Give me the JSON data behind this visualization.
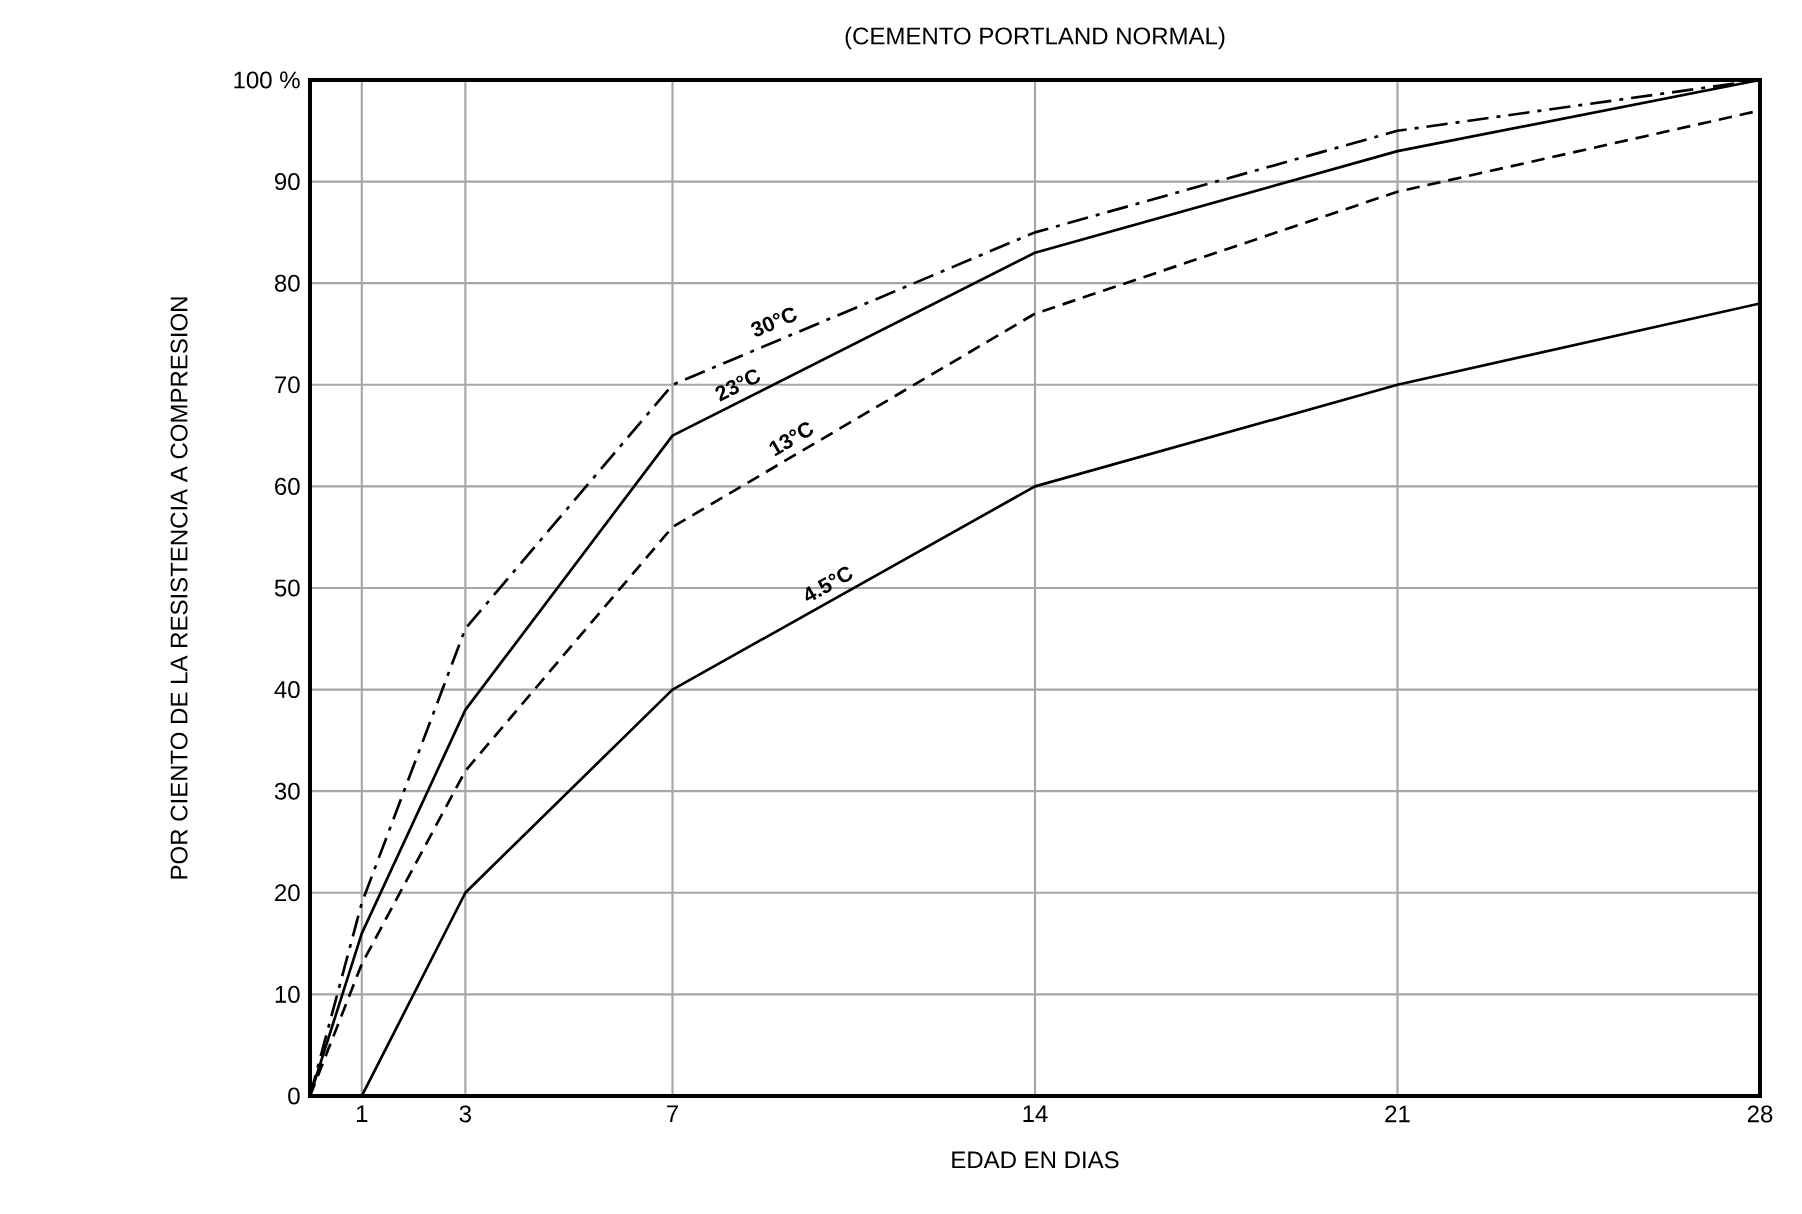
{
  "chart_data": {
    "type": "line",
    "title": "(CEMENTO PORTLAND NORMAL)",
    "xlabel": "EDAD EN DIAS",
    "ylabel": "POR CIENTO DE LA RESISTENCIA A COMPRESION",
    "xlim": [
      0,
      28
    ],
    "xticks": [
      1,
      3,
      7,
      14,
      21,
      28
    ],
    "ylim": [
      0,
      100
    ],
    "yticks": [
      0,
      10,
      20,
      30,
      40,
      50,
      60,
      70,
      80,
      90,
      {
        "value": 100,
        "label": "100 %"
      }
    ],
    "grid": true,
    "legend": false,
    "marker": "none",
    "series": [
      {
        "name": "30°C",
        "color": "#000000",
        "line_style": "dashdot",
        "x": [
          0,
          1,
          3,
          7,
          14,
          21,
          28
        ],
        "values": [
          0,
          19,
          46,
          70,
          85,
          95,
          100
        ]
      },
      {
        "name": "23°C",
        "color": "#000000",
        "line_style": "solid",
        "x": [
          0,
          1,
          3,
          7,
          14,
          21,
          28
        ],
        "values": [
          0,
          16,
          38,
          65,
          83,
          93,
          100
        ]
      },
      {
        "name": "13°C",
        "color": "#000000",
        "line_style": "dashed",
        "x": [
          0,
          1,
          3,
          7,
          14,
          21,
          28
        ],
        "values": [
          0,
          13,
          32,
          56,
          77,
          89,
          97
        ]
      },
      {
        "name": "4.5°C",
        "color": "#000000",
        "line_style": "solid",
        "x": [
          1,
          3,
          7,
          14,
          21,
          28
        ],
        "values": [
          0,
          20,
          40,
          60,
          70,
          78
        ]
      }
    ]
  }
}
